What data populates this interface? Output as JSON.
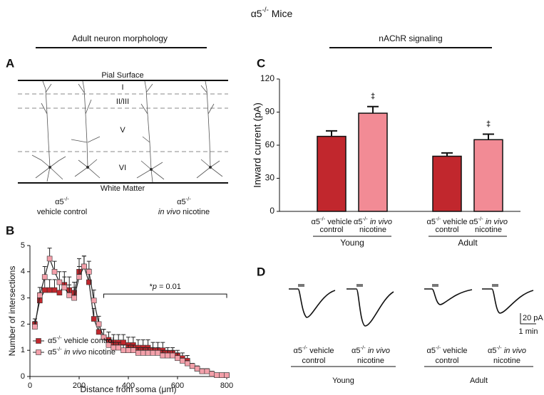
{
  "title": [
    {
      "text": "α5"
    },
    {
      "text": "-/-",
      "style": "sup"
    },
    {
      "text": " Mice"
    }
  ],
  "sections": [
    "Adult neuron morphology",
    "nAChR signaling"
  ],
  "panel_letters": [
    "A",
    "B",
    "C",
    "D"
  ],
  "panel_a": {
    "pial": "Pial Surface",
    "white_matter": "White Matter",
    "layers": [
      "I",
      "II/III",
      "V",
      "VI"
    ],
    "captions": [
      [
        [
          {
            "text": "α5"
          },
          {
            "text": "-/-",
            "style": "sup"
          }
        ],
        [
          {
            "text": "vehicle control"
          }
        ]
      ],
      [
        [
          {
            "text": "α5"
          },
          {
            "text": "-/-",
            "style": "sup"
          }
        ],
        [
          {
            "text": "in vivo",
            "style": "italic"
          },
          {
            "text": " nicotine"
          }
        ]
      ]
    ]
  },
  "chart_data": [
    {
      "type": "line",
      "xlabel": [
        {
          "text": "Distance from soma ("
        },
        {
          "text": "μ"
        },
        {
          "text": "m)"
        }
      ],
      "ylabel": "Number of intersections",
      "x": [
        20,
        40,
        60,
        80,
        100,
        120,
        140,
        160,
        180,
        200,
        220,
        240,
        260,
        280,
        300,
        320,
        340,
        360,
        380,
        400,
        420,
        440,
        460,
        480,
        500,
        520,
        540,
        560,
        580,
        600,
        620,
        640,
        660,
        680,
        700,
        720,
        740,
        760,
        780,
        800
      ],
      "xlim": [
        0,
        800
      ],
      "xticks": [
        0,
        200,
        400,
        600,
        800
      ],
      "ylim": [
        0,
        5
      ],
      "yticks": [
        0,
        1,
        2,
        3,
        4,
        5
      ],
      "legend": "lower left",
      "series": [
        {
          "name": [
            {
              "text": "α5"
            },
            {
              "text": "-/-",
              "style": "sup"
            },
            {
              "text": " vehicle control"
            }
          ],
          "color": "#c0272d",
          "values": [
            2.0,
            2.9,
            3.3,
            3.3,
            3.3,
            3.2,
            3.5,
            3.3,
            3.2,
            4.0,
            4.2,
            3.6,
            2.2,
            1.7,
            1.5,
            1.4,
            1.3,
            1.3,
            1.3,
            1.2,
            1.2,
            1.1,
            1.1,
            1.1,
            1.0,
            1.0,
            1.0,
            0.9,
            0.9,
            0.8,
            0.7,
            0.6,
            0.4,
            0.3,
            0.2,
            0.2,
            0.1,
            0.05,
            0.05,
            0.05
          ],
          "errors": [
            0.2,
            0.3,
            0.4,
            0.4,
            0.4,
            0.4,
            0.5,
            0.5,
            0.4,
            0.5,
            0.4,
            0.5,
            0.4,
            0.3,
            0.3,
            0.3,
            0.3,
            0.3,
            0.3,
            0.3,
            0.3,
            0.3,
            0.3,
            0.3,
            0.3,
            0.3,
            0.3,
            0.2,
            0.2,
            0.2,
            0.2,
            0.2,
            0.1,
            0.1,
            0.1,
            0.1,
            0.1,
            0.05,
            0.05,
            0.05
          ]
        },
        {
          "name": [
            {
              "text": "α5"
            },
            {
              "text": "-/-",
              "style": "sup"
            },
            {
              "text": " "
            },
            {
              "text": "in vivo",
              "style": "italic"
            },
            {
              "text": " nicotine"
            }
          ],
          "color": "#f3a0aa",
          "values": [
            1.9,
            3.1,
            3.8,
            4.5,
            4.0,
            3.6,
            3.4,
            3.1,
            3.0,
            3.8,
            4.2,
            4.0,
            2.9,
            2.0,
            1.5,
            1.2,
            1.1,
            1.1,
            1.0,
            1.0,
            1.0,
            0.9,
            0.9,
            0.9,
            0.9,
            0.9,
            0.8,
            0.8,
            0.8,
            0.7,
            0.6,
            0.5,
            0.4,
            0.3,
            0.2,
            0.2,
            0.1,
            0.05,
            0.05,
            0.05
          ],
          "errors": [
            0.2,
            0.3,
            0.4,
            0.4,
            0.4,
            0.4,
            0.4,
            0.4,
            0.4,
            0.4,
            0.4,
            0.4,
            0.4,
            0.3,
            0.3,
            0.2,
            0.2,
            0.2,
            0.2,
            0.2,
            0.2,
            0.2,
            0.2,
            0.2,
            0.2,
            0.2,
            0.2,
            0.2,
            0.2,
            0.2,
            0.1,
            0.1,
            0.1,
            0.1,
            0.1,
            0.1,
            0.05,
            0.05,
            0.05,
            0.05
          ]
        }
      ],
      "annotation": {
        "text": [
          {
            "text": "*"
          },
          {
            "text": "p",
            "style": "italic"
          },
          {
            "text": " = 0.01"
          }
        ],
        "x_range": [
          300,
          800
        ]
      }
    },
    {
      "type": "bar",
      "ylabel": "Inward current (pA)",
      "ylim": [
        0,
        120
      ],
      "yticks": [
        0,
        30,
        60,
        90,
        120
      ],
      "categories": [
        [
          [
            {
              "text": "α5"
            },
            {
              "text": "-/-",
              "style": "sup"
            },
            {
              "text": " vehicle"
            }
          ],
          [
            {
              "text": "control"
            }
          ]
        ],
        [
          [
            {
              "text": "α5"
            },
            {
              "text": "-/-",
              "style": "sup"
            },
            {
              "text": " "
            },
            {
              "text": "in vivo",
              "style": "italic"
            }
          ],
          [
            {
              "text": "nicotine"
            }
          ]
        ],
        [
          [
            {
              "text": "α5"
            },
            {
              "text": "-/-",
              "style": "sup"
            },
            {
              "text": " vehicle"
            }
          ],
          [
            {
              "text": "control"
            }
          ]
        ],
        [
          [
            {
              "text": "α5"
            },
            {
              "text": "-/-",
              "style": "sup"
            },
            {
              "text": " "
            },
            {
              "text": "in vivo",
              "style": "italic"
            }
          ],
          [
            {
              "text": "nicotine"
            }
          ]
        ]
      ],
      "groups": [
        "Young",
        "Adult"
      ],
      "values": [
        68,
        89,
        50,
        65
      ],
      "errors": [
        5,
        6,
        3,
        5
      ],
      "colors": [
        "#c1272d",
        "#f28b95",
        "#c1272d",
        "#f28b95"
      ],
      "markers": [
        {
          "index": 1,
          "text": "‡"
        },
        {
          "index": 3,
          "text": "‡"
        }
      ]
    }
  ],
  "panel_d": {
    "categories": [
      [
        [
          {
            "text": "α5"
          },
          {
            "text": "-/-",
            "style": "sup"
          },
          {
            "text": " vehicle"
          }
        ],
        [
          {
            "text": "control"
          }
        ]
      ],
      [
        [
          {
            "text": "α5"
          },
          {
            "text": "-/-",
            "style": "sup"
          },
          {
            "text": " "
          },
          {
            "text": "in vivo",
            "style": "italic"
          }
        ],
        [
          {
            "text": "nicotine"
          }
        ]
      ],
      [
        [
          {
            "text": "α5"
          },
          {
            "text": "-/-",
            "style": "sup"
          },
          {
            "text": " vehicle"
          }
        ],
        [
          {
            "text": "control"
          }
        ]
      ],
      [
        [
          {
            "text": "α5"
          },
          {
            "text": "-/-",
            "style": "sup"
          },
          {
            "text": " "
          },
          {
            "text": "in vivo",
            "style": "italic"
          }
        ],
        [
          {
            "text": "nicotine"
          }
        ]
      ]
    ],
    "groups": [
      "Young",
      "Adult"
    ],
    "scale": {
      "y": "20 pA",
      "x": "1 min"
    }
  }
}
